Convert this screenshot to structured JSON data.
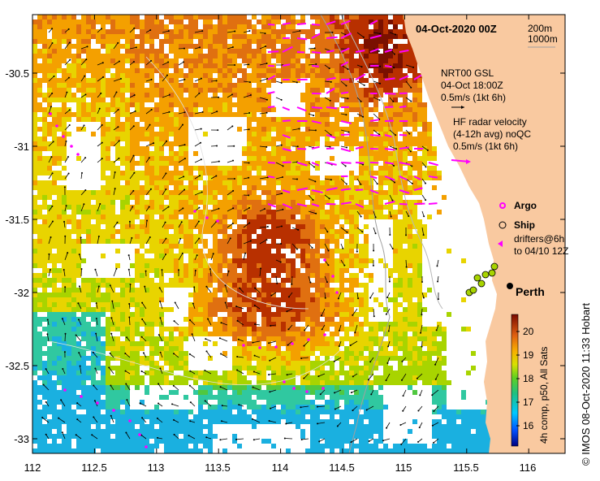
{
  "map": {
    "date_title": "04-Oct-2020 00Z",
    "contours": {
      "c1": "200m",
      "c2": "1000m"
    },
    "model": {
      "name": "NRT00 GSL",
      "time": "04-Oct 18:00Z",
      "scale": "0.5m/s (1kt 6h)"
    },
    "radar": {
      "l1": "HF radar velocity",
      "l2": "(4-12h avg) noQC",
      "scale": "0.5m/s (1kt 6h)"
    },
    "legend": {
      "argo": "Argo",
      "ship": "Ship",
      "drifters1": "drifters@6h",
      "drifters2": "to 04/10 12Z"
    },
    "city": "Perth",
    "colorbar": {
      "label": "4h comp, p50, All Sats",
      "ticks": [
        "20",
        "19",
        "18",
        "17",
        "16"
      ],
      "range": [
        15.5,
        20.5
      ]
    },
    "credit": "© IMOS 08-Oct-2020 11:33 Hobart",
    "axes": {
      "lat_ticks": [
        "-30.5",
        "-31",
        "-31.5",
        "-32",
        "-32.5",
        "-33"
      ],
      "lon_ticks": [
        "112",
        "112.5",
        "113",
        "113.5",
        "114",
        "114.5",
        "115",
        "115.5",
        "116"
      ],
      "lon_range": [
        112,
        116.3
      ],
      "lat_range": [
        -33.15,
        -30.1
      ]
    },
    "colors": {
      "land": "#f9c9a0",
      "radar": "#ff00ff",
      "sst_hot": "#8b1a00",
      "sst_cold": "#1ab0e0"
    }
  }
}
